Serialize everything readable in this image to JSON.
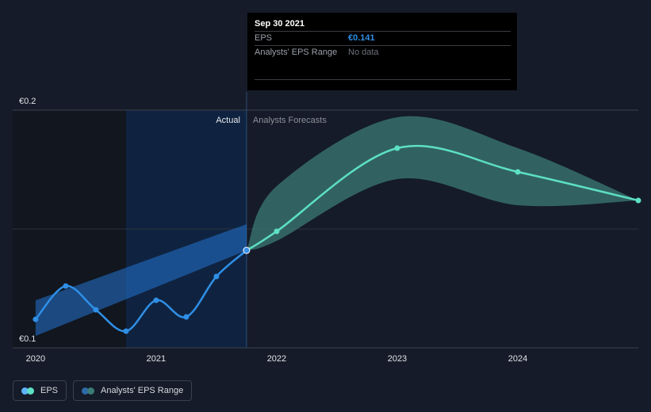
{
  "chart_data": {
    "type": "line",
    "ylim": [
      0.1,
      0.2
    ],
    "y_tick_labels": [
      "€0.2",
      "€0.1"
    ],
    "x_tick_labels": [
      "2020",
      "2021",
      "2022",
      "2023",
      "2024"
    ],
    "x_ticks": [
      2020.0,
      2021.0,
      2022.0,
      2023.0,
      2024.0
    ],
    "xlim": [
      2019.81,
      2025.0
    ],
    "divider_x": 2021.75,
    "actual_label": "Actual",
    "forecast_label": "Analysts Forecasts",
    "series": [
      {
        "name": "EPS",
        "color": "#2f8fe6",
        "x": [
          2020.0,
          2020.25,
          2020.5,
          2020.75,
          2021.0,
          2021.25,
          2021.5,
          2021.75
        ],
        "values": [
          0.112,
          0.126,
          0.116,
          0.107,
          0.12,
          0.113,
          0.13,
          0.141
        ]
      },
      {
        "name": "EPS forecast",
        "color": "#5de0c4",
        "x": [
          2021.75,
          2022.0,
          2023.0,
          2024.0,
          2025.0
        ],
        "values": [
          0.141,
          0.149,
          0.184,
          0.174,
          0.162
        ]
      }
    ],
    "analyst_range": {
      "name": "Analysts' EPS Range",
      "x": [
        2021.75,
        2022.0,
        2023.0,
        2024.0,
        2025.0
      ],
      "low": [
        0.141,
        0.145,
        0.171,
        0.16,
        0.162
      ],
      "high": [
        0.141,
        0.168,
        0.197,
        0.184,
        0.162
      ]
    },
    "historical_band": {
      "x": [
        2020.0,
        2021.75
      ],
      "low": [
        0.105,
        0.141
      ],
      "high": [
        0.12,
        0.152
      ]
    }
  },
  "tooltip": {
    "date": "Sep 30 2021",
    "rows": [
      {
        "label": "EPS",
        "value": "€0.141"
      },
      {
        "label": "Analysts' EPS Range",
        "value": "No data"
      }
    ]
  },
  "legend": [
    {
      "label": "EPS",
      "colors": [
        "#5fb4ff",
        "#5de0c4"
      ]
    },
    {
      "label": "Analysts' EPS Range",
      "colors": [
        "#2d6aa8",
        "#3b7b74"
      ]
    }
  ]
}
